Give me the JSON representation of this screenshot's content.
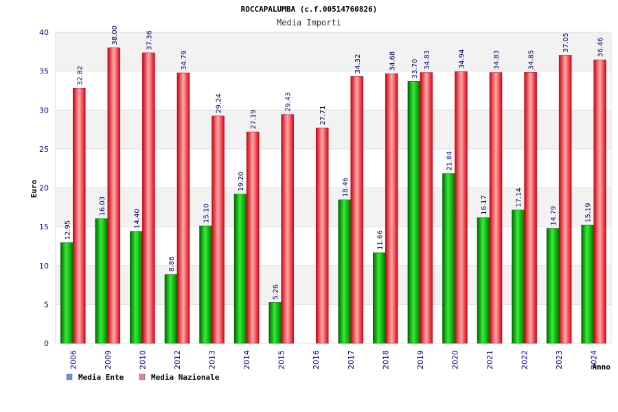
{
  "chart_data": {
    "type": "bar",
    "title": "ROCCAPALUMBA (c.f.00514760826)",
    "subtitle": "Media Importi",
    "ylabel": "Euro",
    "xlabel": "Anno",
    "ylim": [
      0,
      40
    ],
    "yticks": [
      0,
      5,
      10,
      15,
      20,
      25,
      30,
      35,
      40
    ],
    "grid": true,
    "legend_position": "bottom-left",
    "categories": [
      "2006",
      "2009",
      "2010",
      "2012",
      "2013",
      "2014",
      "2015",
      "2016",
      "2017",
      "2018",
      "2019",
      "2020",
      "2021",
      "2022",
      "2023",
      "2024"
    ],
    "series": [
      {
        "name": "Media Ente",
        "color": "#00aa00",
        "legend_color": "#5b9bd5",
        "values": [
          12.95,
          16.03,
          14.4,
          8.86,
          15.1,
          19.2,
          5.26,
          null,
          18.46,
          11.66,
          33.7,
          21.84,
          16.17,
          17.14,
          14.79,
          15.19
        ],
        "labels": [
          "12.95",
          "16.03",
          "14.40",
          "8.86",
          "15.10",
          "19.20",
          "5.26",
          "",
          "18.46",
          "11.66",
          "33.70",
          "21.84",
          "16.17",
          "17.14",
          "14.79",
          "15.19"
        ]
      },
      {
        "name": "Media Nazionale",
        "color": "#ee1122",
        "legend_color": "#e87fa8",
        "values": [
          32.82,
          38.0,
          37.36,
          34.79,
          29.24,
          27.19,
          29.43,
          27.71,
          34.32,
          34.68,
          34.83,
          34.94,
          34.83,
          34.85,
          37.05,
          36.46
        ],
        "labels": [
          "32.82",
          "38.00",
          "37.36",
          "34.79",
          "29.24",
          "27.19",
          "29.43",
          "27.71",
          "34.32",
          "34.68",
          "34.83",
          "34.94",
          "34.83",
          "34.85",
          "37.05",
          "36.46"
        ]
      }
    ]
  }
}
